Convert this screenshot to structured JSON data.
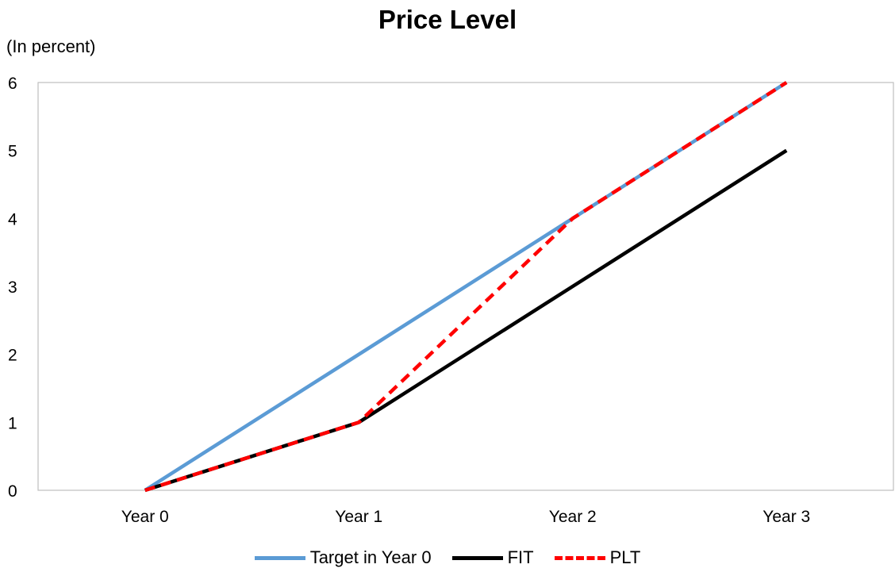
{
  "chart_data": {
    "type": "line",
    "title": "Price Level",
    "ylabel": "(In percent)",
    "xlabel": "",
    "categories": [
      "Year 0",
      "Year 1",
      "Year 2",
      "Year 3"
    ],
    "ylim": [
      0,
      6
    ],
    "yticks": [
      0,
      1,
      2,
      3,
      4,
      5,
      6
    ],
    "grid": false,
    "legend_position": "bottom",
    "series": [
      {
        "name": "Target in Year 0",
        "values": [
          0,
          2,
          4,
          6
        ],
        "color": "#5b9bd5",
        "style": "solid"
      },
      {
        "name": "FIT",
        "values": [
          0,
          1,
          3,
          5
        ],
        "color": "#000000",
        "style": "solid"
      },
      {
        "name": "PLT",
        "values": [
          0,
          1,
          4,
          6
        ],
        "color": "#ff0000",
        "style": "dashed"
      }
    ]
  }
}
